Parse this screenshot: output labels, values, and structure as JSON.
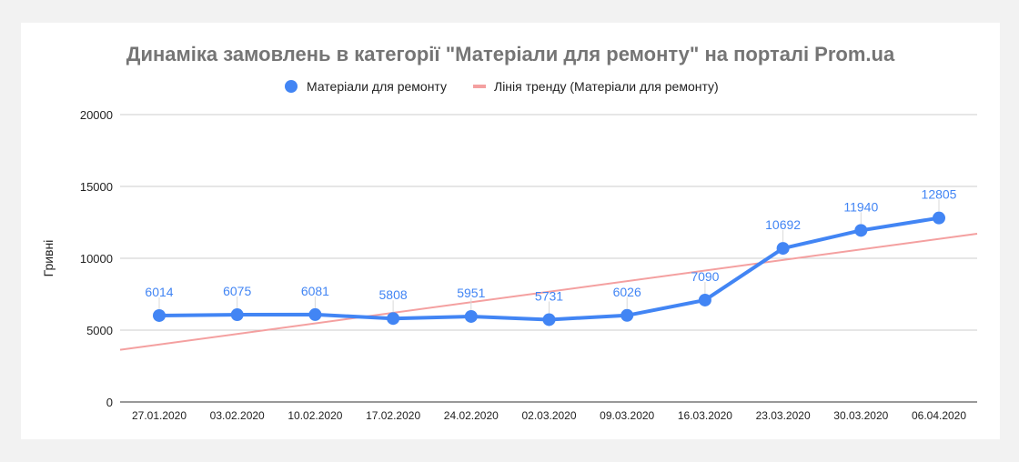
{
  "chart_data": {
    "type": "line",
    "title": "Динаміка замовлень в категорії \"Матеріали для ремонту\" на порталі Prom.ua",
    "xlabel": "",
    "ylabel": "Гривні",
    "ylim": [
      0,
      20000
    ],
    "yticks": [
      0,
      5000,
      10000,
      15000,
      20000
    ],
    "grid": true,
    "legend_position": "top",
    "categories": [
      "27.01.2020",
      "03.02.2020",
      "10.02.2020",
      "17.02.2020",
      "24.02.2020",
      "02.03.2020",
      "09.03.2020",
      "16.03.2020",
      "23.03.2020",
      "30.03.2020",
      "06.04.2020"
    ],
    "series": [
      {
        "name": "Матеріали для ремонту",
        "color": "#4285f4",
        "values": [
          6014,
          6075,
          6081,
          5808,
          5951,
          5731,
          6026,
          7090,
          10692,
          11940,
          12805
        ]
      }
    ],
    "trendline": {
      "name": "Лінія тренду (Матеріали для ремонту)",
      "color": "#f4a0a0",
      "start_value": 4000,
      "end_value": 11350
    }
  }
}
